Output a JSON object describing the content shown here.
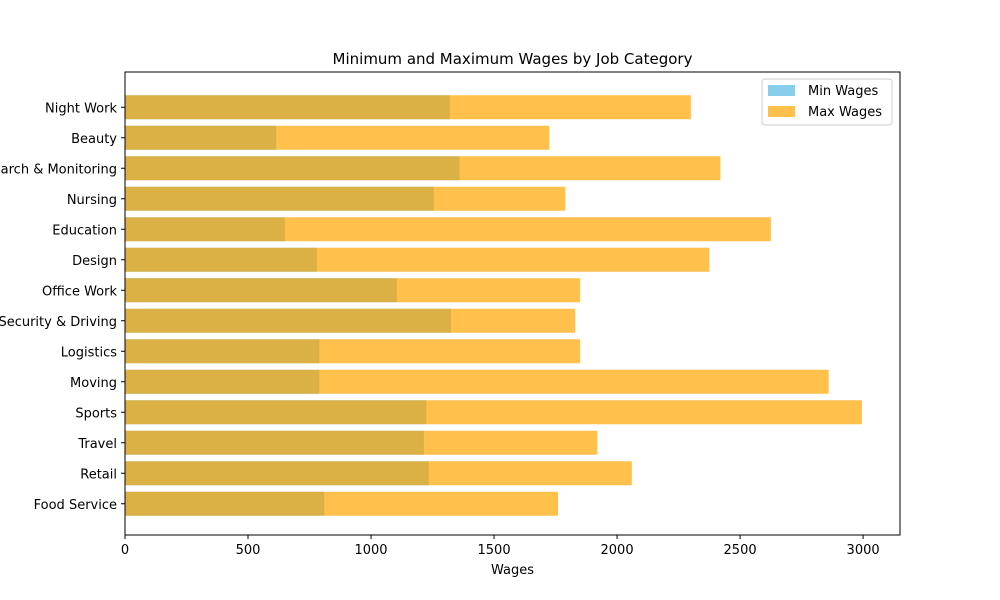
{
  "chart_data": {
    "type": "bar",
    "orientation": "horizontal",
    "title": "Minimum and Maximum Wages by Job Category",
    "xlabel": "Wages",
    "ylabel": "",
    "xlim": [
      0,
      3150
    ],
    "xticks": [
      0,
      500,
      1000,
      1500,
      2000,
      2500,
      3000
    ],
    "grid": false,
    "legend_position": "top-right",
    "categories": [
      "Food Service",
      "Retail",
      "Travel",
      "Sports",
      "Moving",
      "Logistics",
      "Security & Driving",
      "Office Work",
      "Design",
      "Education",
      "Nursing",
      "Research & Monitoring",
      "Beauty",
      "Night Work"
    ],
    "series": [
      {
        "name": "Min Wages",
        "color": "#87ceeb",
        "values": [
          810,
          1235,
          1215,
          1225,
          790,
          790,
          1325,
          1105,
          780,
          650,
          1255,
          1360,
          615,
          1320
        ]
      },
      {
        "name": "Max Wages",
        "color": "#ffa500",
        "values": [
          1760,
          2060,
          1920,
          2995,
          2860,
          1850,
          1830,
          1850,
          2375,
          2625,
          1790,
          2420,
          1725,
          2300
        ]
      }
    ]
  }
}
